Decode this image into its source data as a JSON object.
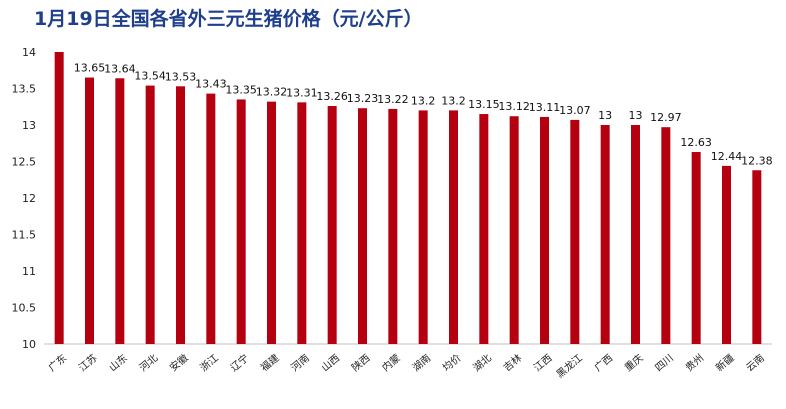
{
  "title": "1月19日全国各省外三元生猪价格（元/公斤）",
  "chart_data": {
    "type": "bar",
    "title": "1月19日全国各省外三元生猪价格（元/公斤）",
    "xlabel": "",
    "ylabel": "",
    "ylim": [
      10,
      14
    ],
    "yticks": [
      10,
      10.5,
      11,
      11.5,
      12,
      12.5,
      13,
      13.5,
      14
    ],
    "grid": false,
    "legend": "none",
    "bar_color": "#b5000f",
    "categories": [
      "广东",
      "江苏",
      "山东",
      "河北",
      "安徽",
      "浙江",
      "辽宁",
      "福建",
      "河南",
      "山西",
      "陕西",
      "内蒙",
      "湖南",
      "均价",
      "湖北",
      "吉林",
      "江西",
      "黑龙江",
      "广西",
      "重庆",
      "四川",
      "贵州",
      "新疆",
      "云南"
    ],
    "values": [
      14,
      13.65,
      13.64,
      13.54,
      13.53,
      13.43,
      13.35,
      13.32,
      13.31,
      13.26,
      13.23,
      13.22,
      13.2,
      13.2,
      13.15,
      13.12,
      13.11,
      13.07,
      13,
      13,
      12.97,
      12.63,
      12.44,
      12.38
    ],
    "data_labels": [
      "",
      "13.65",
      "13.64",
      "13.54",
      "13.53",
      "13.43",
      "13.35",
      "13.32",
      "13.31",
      "13.26",
      "13.23",
      "13.22",
      "13.2",
      "13.2",
      "13.15",
      "13.12",
      "13.11",
      "13.07",
      "13",
      "13",
      "12.97",
      "12.63",
      "12.44",
      "12.38"
    ]
  }
}
